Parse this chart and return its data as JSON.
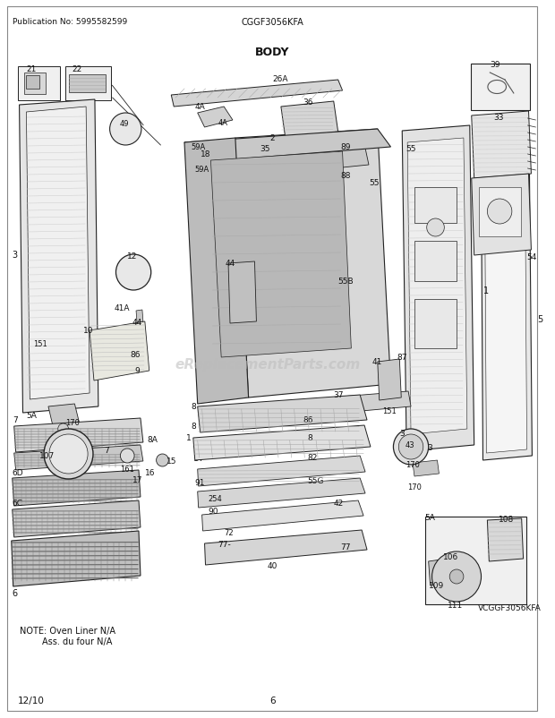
{
  "pub_no": "Publication No: 5995582599",
  "model": "CGGF3056KFA",
  "title": "BODY",
  "footer_left": "12/10",
  "footer_center": "6",
  "bg_color": "#ffffff",
  "fig_width": 6.2,
  "fig_height": 8.03,
  "dpi": 100,
  "watermark_text": "eReplacementParts.com",
  "note_line1": "NOTE: Oven Liner N/A",
  "note_line2": "        Ass. du four N/A",
  "vcggf_label": "VCGGF3056KFA"
}
